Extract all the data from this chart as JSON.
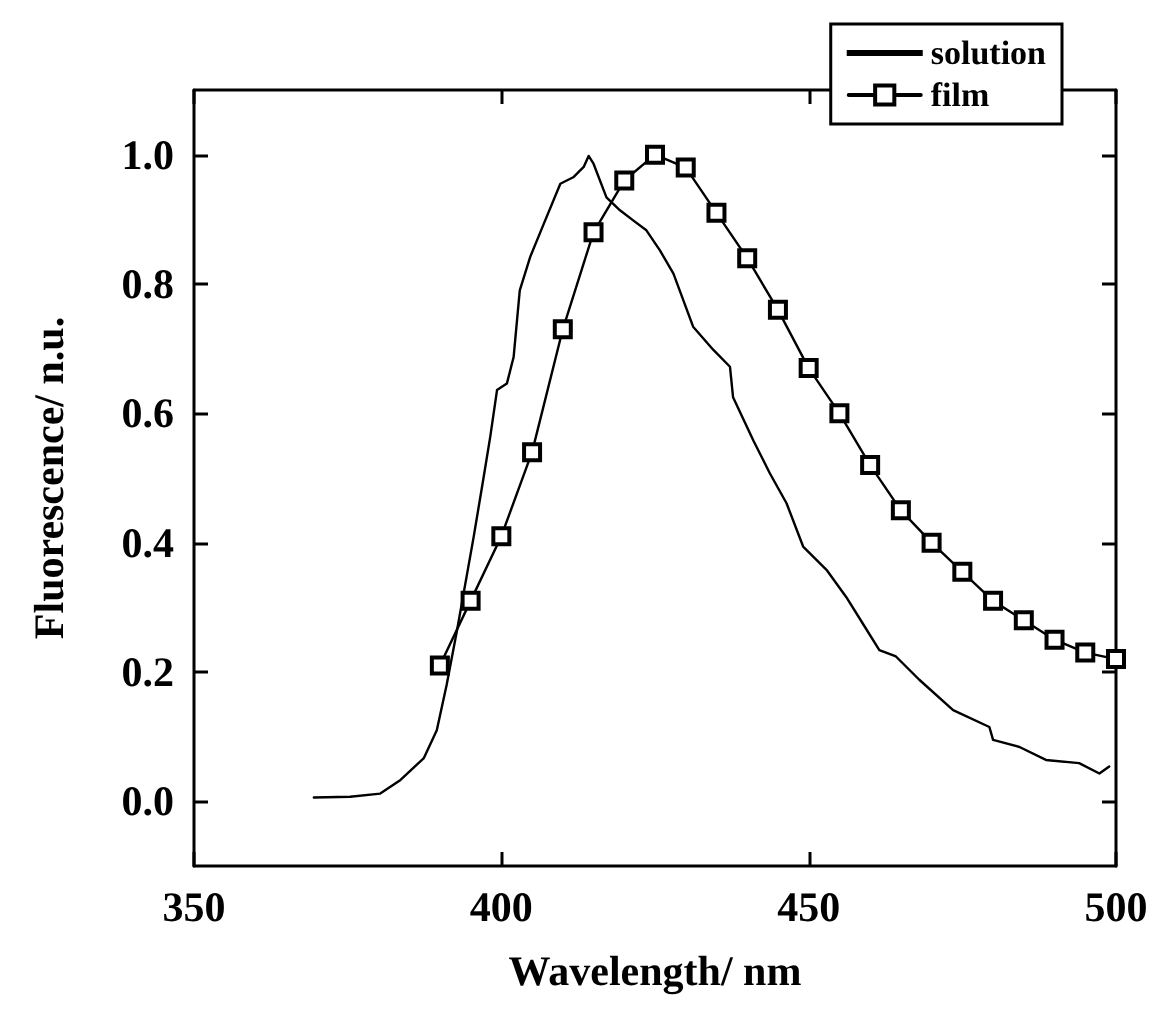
{
  "chart_data": {
    "type": "line",
    "xlabel": "Wavelength/ nm",
    "ylabel": "Fluorescence/ n.u.",
    "xlim": [
      350,
      500
    ],
    "xticks": [
      350,
      400,
      450,
      500
    ],
    "ylim": [
      -0.1,
      1.1
    ],
    "yticks": [
      {
        "value": 0,
        "label": "0.0"
      },
      0.2,
      0.4,
      0.6,
      0.8,
      {
        "value": 1,
        "label": "1.0"
      }
    ],
    "legend": "top right",
    "grid": false,
    "series": [
      {
        "name": "solution",
        "color": "#000000",
        "marker": "none",
        "x": [
          369.5,
          375.4,
          380.3,
          383.6,
          387.4,
          389.5,
          391.1,
          392.8,
          395.5,
          397.1,
          398.2,
          399.3,
          400.9,
          402,
          403,
          404.7,
          406.9,
          409.6,
          411.7,
          413.4,
          414.2,
          415,
          417.1,
          419.3,
          421.5,
          423.6,
          425.8,
          428,
          431.2,
          434.5,
          437.2,
          437.7,
          441,
          443.7,
          446.4,
          449.1,
          452.9,
          456.1,
          458.8,
          461.5,
          464.2,
          468,
          473.5,
          479.4,
          480,
          484.3,
          488.6,
          494,
          497.3,
          498.9
        ],
        "values": [
          0.006,
          0.007,
          0.012,
          0.033,
          0.067,
          0.11,
          0.18,
          0.265,
          0.409,
          0.5,
          0.564,
          0.636,
          0.646,
          0.687,
          0.79,
          0.842,
          0.893,
          0.955,
          0.965,
          0.981,
          0.998,
          0.986,
          0.934,
          0.914,
          0.898,
          0.883,
          0.852,
          0.816,
          0.734,
          0.698,
          0.672,
          0.625,
          0.558,
          0.507,
          0.461,
          0.394,
          0.358,
          0.316,
          0.275,
          0.234,
          0.224,
          0.188,
          0.141,
          0.115,
          0.095,
          0.084,
          0.064,
          0.059,
          0.043,
          0.054
        ]
      },
      {
        "name": "film",
        "color": "#000000",
        "marker": "square",
        "x": [
          390,
          395,
          400,
          405,
          410,
          415,
          420,
          425,
          430,
          435,
          440,
          445,
          450,
          455,
          460,
          465,
          470,
          475,
          480,
          485,
          490,
          495,
          500
        ],
        "values": [
          0.21,
          0.31,
          0.41,
          0.54,
          0.73,
          0.88,
          0.96,
          1.0,
          0.98,
          0.91,
          0.84,
          0.76,
          0.67,
          0.6,
          0.52,
          0.45,
          0.4,
          0.355,
          0.31,
          0.28,
          0.25,
          0.23,
          0.22
        ]
      }
    ]
  }
}
